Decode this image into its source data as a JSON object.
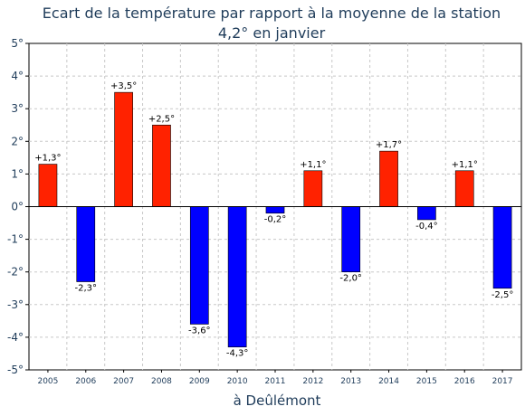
{
  "chart_data": {
    "type": "bar",
    "title_lines": [
      "Ecart de la température par rapport à la moyenne de la station",
      "4,2° en janvier"
    ],
    "xlabel": "à Deûlémont",
    "ylabel": "",
    "categories": [
      "2005",
      "2006",
      "2007",
      "2008",
      "2009",
      "2010",
      "2011",
      "2012",
      "2013",
      "2014",
      "2015",
      "2016",
      "2017"
    ],
    "values": [
      1.3,
      -2.3,
      3.5,
      2.5,
      -3.6,
      -4.3,
      -0.2,
      1.1,
      -2.0,
      1.7,
      -0.4,
      1.1,
      -2.5
    ],
    "data_labels": [
      "+1,3°",
      "-2,3°",
      "+3,5°",
      "+2,5°",
      "-3,6°",
      "-4,3°",
      "-0,2°",
      "+1,1°",
      "-2,0°",
      "+1,7°",
      "-0,4°",
      "+1,1°",
      "-2,5°"
    ],
    "ylim": [
      -5,
      5
    ],
    "yticks": [
      5,
      4,
      3,
      2,
      1,
      0,
      -1,
      -2,
      -3,
      -4,
      -5
    ],
    "ytick_labels": [
      "5°",
      "4°",
      "3°",
      "2°",
      "1°",
      "0°",
      "-1°",
      "-2°",
      "-3°",
      "-4°",
      "-5°"
    ],
    "grid": true,
    "colors": {
      "positive": "#ff2200",
      "negative": "#0000ff",
      "text": "#1f3c5a",
      "grid": "#c8c8c8",
      "axis": "#000000"
    }
  }
}
